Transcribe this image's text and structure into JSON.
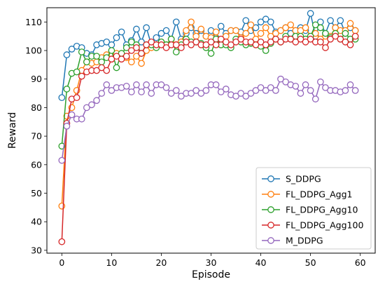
{
  "chart_data": {
    "type": "line",
    "title": "",
    "xlabel": "Episode",
    "ylabel": "Reward",
    "xlim": [
      -3,
      63
    ],
    "ylim": [
      29,
      115
    ],
    "xticks": [
      0,
      10,
      20,
      30,
      40,
      50,
      60
    ],
    "yticks": [
      30,
      40,
      50,
      60,
      70,
      80,
      90,
      100,
      110
    ],
    "grid": false,
    "legend_position": "lower right",
    "marker": "open-circle",
    "series": [
      {
        "name": "S_DDPG",
        "color": "#1f77b4",
        "x": [
          0,
          1,
          2,
          3,
          4,
          5,
          6,
          7,
          8,
          9,
          10,
          11,
          12,
          13,
          14,
          15,
          16,
          17,
          18,
          19,
          20,
          21,
          22,
          23,
          24,
          25,
          26,
          27,
          28,
          29,
          30,
          31,
          32,
          33,
          34,
          35,
          36,
          37,
          38,
          39,
          40,
          41,
          42,
          43,
          44,
          45,
          46,
          47,
          48,
          49,
          50,
          51,
          52,
          53,
          54,
          55,
          56,
          57,
          58,
          59
        ],
        "y": [
          83.5,
          98.5,
          100.5,
          101.5,
          101,
          99,
          98.5,
          102,
          102.5,
          103,
          102,
          104.5,
          106.5,
          102,
          103.5,
          107.5,
          103,
          108,
          102,
          104.5,
          106,
          107,
          104,
          110,
          104,
          106,
          108,
          106,
          107,
          105,
          107,
          104.5,
          108.5,
          106,
          107,
          107,
          106.5,
          110.5,
          107,
          108,
          110,
          111,
          110,
          106.5,
          107,
          108,
          106,
          107,
          108,
          107,
          113,
          105,
          110,
          106,
          110.5,
          108,
          110.5,
          106,
          108,
          107
        ]
      },
      {
        "name": "FL_DDPG_Agg1",
        "color": "#ff7f0e",
        "x": [
          0,
          1,
          2,
          3,
          4,
          5,
          6,
          7,
          8,
          9,
          10,
          11,
          12,
          13,
          14,
          15,
          16,
          17,
          18,
          19,
          20,
          21,
          22,
          23,
          24,
          25,
          26,
          27,
          28,
          29,
          30,
          31,
          32,
          33,
          34,
          35,
          36,
          37,
          38,
          39,
          40,
          41,
          42,
          43,
          44,
          45,
          46,
          47,
          48,
          49,
          50,
          51,
          52,
          53,
          54,
          55,
          56,
          57,
          58,
          59
        ],
        "y": [
          45.5,
          77,
          80,
          86,
          93,
          96,
          95.5,
          96,
          97.5,
          98.5,
          97,
          99,
          98,
          97.5,
          96,
          98,
          95.5,
          100,
          101,
          102,
          103,
          102,
          104,
          102,
          103,
          107,
          110,
          105,
          107.5,
          105,
          104.5,
          106.5,
          102,
          105,
          107,
          107,
          104.5,
          106,
          109,
          104,
          106,
          108,
          105,
          106,
          107,
          108,
          109,
          107,
          107,
          108,
          105,
          106,
          104,
          105,
          105,
          108,
          107,
          107,
          109.5,
          107
        ]
      },
      {
        "name": "FL_DDPG_Agg10",
        "color": "#2ca02c",
        "x": [
          0,
          1,
          2,
          3,
          4,
          5,
          6,
          7,
          8,
          9,
          10,
          11,
          12,
          13,
          14,
          15,
          16,
          17,
          18,
          19,
          20,
          21,
          22,
          23,
          24,
          25,
          26,
          27,
          28,
          29,
          30,
          31,
          32,
          33,
          34,
          35,
          36,
          37,
          38,
          39,
          40,
          41,
          42,
          43,
          44,
          45,
          46,
          47,
          48,
          49,
          50,
          51,
          52,
          53,
          54,
          55,
          56,
          57,
          58,
          59
        ],
        "y": [
          66.5,
          86.5,
          92,
          92.5,
          99.5,
          96,
          98,
          98,
          96,
          97.5,
          100,
          94,
          99,
          101,
          103,
          102,
          99,
          102,
          102,
          101,
          103,
          102,
          104,
          99.5,
          102,
          104,
          103,
          103,
          102.5,
          101,
          99,
          104,
          102,
          102,
          101,
          104,
          103,
          102,
          102.5,
          102,
          101.5,
          100,
          102.5,
          104,
          103,
          105,
          104,
          105,
          105,
          104,
          105,
          109,
          108,
          106,
          104.5,
          106,
          104,
          106,
          104,
          104
        ]
      },
      {
        "name": "FL_DDPG_Agg100",
        "color": "#d62728",
        "x": [
          0,
          1,
          2,
          3,
          4,
          5,
          6,
          7,
          8,
          9,
          10,
          11,
          12,
          13,
          14,
          15,
          16,
          17,
          18,
          19,
          20,
          21,
          22,
          23,
          24,
          25,
          26,
          27,
          28,
          29,
          30,
          31,
          32,
          33,
          34,
          35,
          36,
          37,
          38,
          39,
          40,
          41,
          42,
          43,
          44,
          45,
          46,
          47,
          48,
          49,
          50,
          51,
          52,
          53,
          54,
          55,
          56,
          57,
          58,
          59
        ],
        "y": [
          33,
          74.5,
          83,
          83.5,
          91,
          92.5,
          93,
          93,
          94,
          93,
          97,
          98,
          97,
          98,
          100,
          101,
          99,
          102,
          103,
          102,
          102,
          101,
          102,
          102,
          101,
          103,
          102,
          103,
          102,
          102,
          103,
          102,
          104,
          103,
          102,
          103,
          104,
          103,
          103,
          102,
          103,
          102,
          103,
          104,
          103,
          104,
          104,
          103,
          104,
          103,
          104,
          103,
          103,
          101,
          104,
          105,
          104,
          103,
          102,
          105
        ]
      },
      {
        "name": "M_DDPG",
        "color": "#9467bd",
        "x": [
          0,
          1,
          2,
          3,
          4,
          5,
          6,
          7,
          8,
          9,
          10,
          11,
          12,
          13,
          14,
          15,
          16,
          17,
          18,
          19,
          20,
          21,
          22,
          23,
          24,
          25,
          26,
          27,
          28,
          29,
          30,
          31,
          32,
          33,
          34,
          35,
          36,
          37,
          38,
          39,
          40,
          41,
          42,
          43,
          44,
          45,
          46,
          47,
          48,
          49,
          50,
          51,
          52,
          53,
          54,
          55,
          56,
          57,
          58,
          59
        ],
        "y": [
          61.5,
          73.5,
          77.5,
          76,
          76,
          80,
          81,
          82.5,
          85,
          88,
          86,
          87,
          87,
          87.5,
          85.5,
          88,
          85.5,
          88,
          85,
          88,
          88,
          87,
          85,
          86,
          84,
          85,
          85,
          86,
          85,
          86,
          88,
          88,
          85.5,
          86.5,
          84.5,
          84,
          85,
          84,
          85,
          86,
          87,
          86,
          87,
          86,
          90,
          89,
          88,
          87.5,
          85,
          88,
          86,
          83,
          89,
          87,
          86,
          86,
          85.5,
          86,
          88,
          86
        ]
      }
    ]
  }
}
